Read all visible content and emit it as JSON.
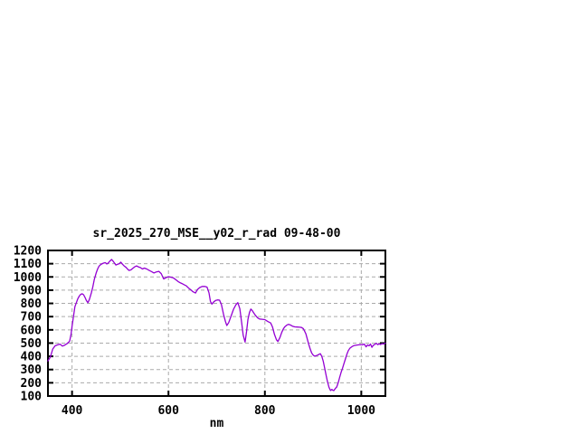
{
  "page": {
    "background": "#ffffff"
  },
  "chart_data": {
    "type": "line",
    "title": "sr_2025_270_MSE__y02_r_rad 09-48-00",
    "xlabel": "nm",
    "ylabel": "",
    "xlim": [
      350,
      1050
    ],
    "ylim": [
      100,
      1200
    ],
    "x_ticks": [
      400,
      600,
      800,
      1000
    ],
    "y_ticks": [
      100,
      200,
      300,
      400,
      500,
      600,
      700,
      800,
      900,
      1000,
      1100,
      1200
    ],
    "grid": true,
    "legend_position": "none",
    "line_color": "#9400d3",
    "grid_color": "#aaaaaa",
    "frame_color": "#000000",
    "text_color": "#000000",
    "series": [
      {
        "name": "sr_2025_270_MSE__y02_r_rad",
        "points": [
          [
            350,
            365
          ],
          [
            355,
            395
          ],
          [
            360,
            455
          ],
          [
            365,
            480
          ],
          [
            370,
            487
          ],
          [
            375,
            492
          ],
          [
            380,
            477
          ],
          [
            385,
            485
          ],
          [
            390,
            497
          ],
          [
            395,
            515
          ],
          [
            398,
            570
          ],
          [
            400,
            625
          ],
          [
            403,
            700
          ],
          [
            406,
            775
          ],
          [
            409,
            805
          ],
          [
            412,
            835
          ],
          [
            415,
            855
          ],
          [
            418,
            868
          ],
          [
            421,
            873
          ],
          [
            424,
            865
          ],
          [
            427,
            845
          ],
          [
            430,
            820
          ],
          [
            433,
            806
          ],
          [
            436,
            830
          ],
          [
            440,
            880
          ],
          [
            443,
            925
          ],
          [
            446,
            980
          ],
          [
            450,
            1030
          ],
          [
            453,
            1060
          ],
          [
            456,
            1082
          ],
          [
            460,
            1095
          ],
          [
            463,
            1101
          ],
          [
            466,
            1105
          ],
          [
            469,
            1108
          ],
          [
            472,
            1098
          ],
          [
            475,
            1105
          ],
          [
            478,
            1118
          ],
          [
            482,
            1132
          ],
          [
            485,
            1120
          ],
          [
            488,
            1105
          ],
          [
            491,
            1090
          ],
          [
            494,
            1095
          ],
          [
            498,
            1100
          ],
          [
            501,
            1112
          ],
          [
            505,
            1095
          ],
          [
            508,
            1083
          ],
          [
            512,
            1072
          ],
          [
            515,
            1060
          ],
          [
            518,
            1049
          ],
          [
            522,
            1053
          ],
          [
            526,
            1065
          ],
          [
            530,
            1076
          ],
          [
            534,
            1083
          ],
          [
            538,
            1075
          ],
          [
            542,
            1070
          ],
          [
            546,
            1060
          ],
          [
            550,
            1067
          ],
          [
            555,
            1060
          ],
          [
            560,
            1049
          ],
          [
            565,
            1040
          ],
          [
            570,
            1030
          ],
          [
            575,
            1038
          ],
          [
            580,
            1042
          ],
          [
            585,
            1025
          ],
          [
            590,
            985
          ],
          [
            595,
            995
          ],
          [
            600,
            1002
          ],
          [
            605,
            998
          ],
          [
            610,
            993
          ],
          [
            615,
            980
          ],
          [
            620,
            965
          ],
          [
            625,
            955
          ],
          [
            628,
            950
          ],
          [
            633,
            940
          ],
          [
            637,
            933
          ],
          [
            642,
            915
          ],
          [
            647,
            900
          ],
          [
            651,
            888
          ],
          [
            656,
            878
          ],
          [
            660,
            905
          ],
          [
            665,
            920
          ],
          [
            670,
            928
          ],
          [
            675,
            928
          ],
          [
            680,
            923
          ],
          [
            684,
            880
          ],
          [
            687,
            815
          ],
          [
            690,
            795
          ],
          [
            694,
            812
          ],
          [
            698,
            822
          ],
          [
            702,
            826
          ],
          [
            706,
            824
          ],
          [
            710,
            790
          ],
          [
            714,
            720
          ],
          [
            718,
            665
          ],
          [
            721,
            633
          ],
          [
            725,
            655
          ],
          [
            730,
            705
          ],
          [
            735,
            755
          ],
          [
            740,
            790
          ],
          [
            744,
            806
          ],
          [
            748,
            760
          ],
          [
            752,
            650
          ],
          [
            755,
            560
          ],
          [
            759,
            508
          ],
          [
            762,
            585
          ],
          [
            765,
            680
          ],
          [
            768,
            730
          ],
          [
            771,
            757
          ],
          [
            774,
            745
          ],
          [
            778,
            722
          ],
          [
            781,
            707
          ],
          [
            785,
            690
          ],
          [
            789,
            682
          ],
          [
            794,
            680
          ],
          [
            800,
            677
          ],
          [
            806,
            663
          ],
          [
            812,
            652
          ],
          [
            816,
            620
          ],
          [
            820,
            565
          ],
          [
            824,
            525
          ],
          [
            827,
            512
          ],
          [
            831,
            540
          ],
          [
            835,
            580
          ],
          [
            838,
            605
          ],
          [
            841,
            622
          ],
          [
            845,
            635
          ],
          [
            849,
            642
          ],
          [
            853,
            637
          ],
          [
            857,
            628
          ],
          [
            862,
            623
          ],
          [
            867,
            621
          ],
          [
            872,
            620
          ],
          [
            876,
            618
          ],
          [
            880,
            608
          ],
          [
            885,
            570
          ],
          [
            888,
            530
          ],
          [
            891,
            490
          ],
          [
            894,
            455
          ],
          [
            897,
            425
          ],
          [
            900,
            410
          ],
          [
            903,
            401
          ],
          [
            906,
            404
          ],
          [
            909,
            409
          ],
          [
            912,
            414
          ],
          [
            915,
            420
          ],
          [
            918,
            400
          ],
          [
            921,
            363
          ],
          [
            924,
            310
          ],
          [
            927,
            255
          ],
          [
            930,
            205
          ],
          [
            933,
            165
          ],
          [
            936,
            142
          ],
          [
            939,
            150
          ],
          [
            941,
            144
          ],
          [
            943,
            141
          ],
          [
            946,
            157
          ],
          [
            949,
            168
          ],
          [
            952,
            200
          ],
          [
            955,
            240
          ],
          [
            958,
            278
          ],
          [
            961,
            310
          ],
          [
            964,
            345
          ],
          [
            967,
            380
          ],
          [
            970,
            415
          ],
          [
            973,
            443
          ],
          [
            976,
            460
          ],
          [
            980,
            472
          ],
          [
            984,
            480
          ],
          [
            988,
            483
          ],
          [
            993,
            486
          ],
          [
            998,
            489
          ],
          [
            1002,
            487
          ],
          [
            1006,
            493
          ],
          [
            1010,
            472
          ],
          [
            1013,
            487
          ],
          [
            1016,
            479
          ],
          [
            1019,
            493
          ],
          [
            1022,
            468
          ],
          [
            1025,
            484
          ],
          [
            1028,
            490
          ],
          [
            1031,
            499
          ],
          [
            1034,
            488
          ],
          [
            1037,
            494
          ],
          [
            1040,
            489
          ],
          [
            1043,
            496
          ],
          [
            1046,
            492
          ],
          [
            1050,
            500
          ]
        ]
      }
    ]
  }
}
